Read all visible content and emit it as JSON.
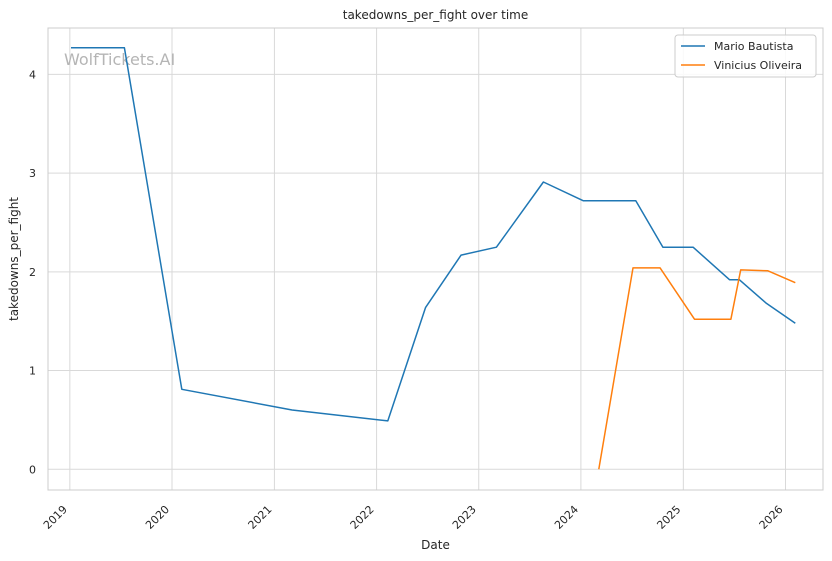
{
  "chart_data": {
    "type": "line",
    "title": "takedowns_per_fight over time",
    "xlabel": "Date",
    "ylabel": "takedowns_per_fight",
    "watermark": "WolfTickets.AI",
    "x_ticks": [
      "2019",
      "2020",
      "2021",
      "2022",
      "2023",
      "2024",
      "2025",
      "2026"
    ],
    "y_ticks": [
      "0",
      "1",
      "2",
      "3",
      "4"
    ],
    "xlim": [
      "2018-10-15",
      "2026-05-15"
    ],
    "ylim": [
      -0.21,
      4.47
    ],
    "grid": true,
    "legend_position": "top-right",
    "series": [
      {
        "name": "Mario Bautista",
        "color": "#1f77b4",
        "points": [
          [
            "2019-01-05",
            4.27
          ],
          [
            "2019-07-15",
            4.27
          ],
          [
            "2020-02-05",
            0.81
          ],
          [
            "2021-03-05",
            0.6
          ],
          [
            "2022-02-10",
            0.49
          ],
          [
            "2022-06-25",
            1.64
          ],
          [
            "2022-10-30",
            2.17
          ],
          [
            "2023-03-05",
            2.25
          ],
          [
            "2023-08-20",
            2.91
          ],
          [
            "2024-01-10",
            2.72
          ],
          [
            "2024-07-15",
            2.72
          ],
          [
            "2024-10-20",
            2.25
          ],
          [
            "2025-02-05",
            2.25
          ],
          [
            "2025-06-15",
            1.92
          ],
          [
            "2025-07-20",
            1.92
          ],
          [
            "2025-10-25",
            1.68
          ],
          [
            "2026-02-05",
            1.48
          ]
        ]
      },
      {
        "name": "Vinicius Oliveira",
        "color": "#ff7f0e",
        "points": [
          [
            "2024-03-05",
            0.0
          ],
          [
            "2024-07-05",
            2.04
          ],
          [
            "2024-10-10",
            2.04
          ],
          [
            "2025-02-10",
            1.52
          ],
          [
            "2025-06-20",
            1.52
          ],
          [
            "2025-07-25",
            2.02
          ],
          [
            "2025-10-30",
            2.01
          ],
          [
            "2026-02-05",
            1.89
          ]
        ]
      }
    ]
  }
}
